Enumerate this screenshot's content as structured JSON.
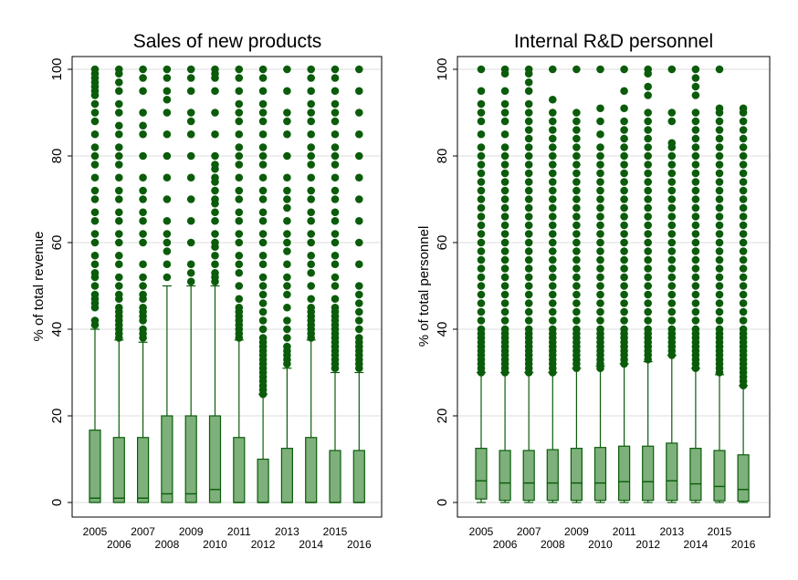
{
  "chart_data": [
    {
      "type": "box",
      "title": "Sales of new products",
      "ylabel": "% of total revenue",
      "xlabel": "",
      "ylim": [
        -3,
        103
      ],
      "yticks": [
        0,
        20,
        40,
        60,
        80,
        100
      ],
      "grid": true,
      "color": "#0a5c0a",
      "box_fill": "#7db07a",
      "categories": [
        "2005",
        "2006",
        "2007",
        "2008",
        "2009",
        "2010",
        "2011",
        "2012",
        "2013",
        "2014",
        "2015",
        "2016"
      ],
      "boxes": [
        {
          "q1": 0,
          "median": 1,
          "q3": 16.7,
          "lower_whisker": 0,
          "upper_whisker": 40
        },
        {
          "q1": 0,
          "median": 1,
          "q3": 15,
          "lower_whisker": 0,
          "upper_whisker": 37.5
        },
        {
          "q1": 0,
          "median": 1,
          "q3": 15,
          "lower_whisker": 0,
          "upper_whisker": 37
        },
        {
          "q1": 0,
          "median": 2,
          "q3": 20,
          "lower_whisker": 0,
          "upper_whisker": 50
        },
        {
          "q1": 0,
          "median": 2,
          "q3": 20,
          "lower_whisker": 0,
          "upper_whisker": 50
        },
        {
          "q1": 0,
          "median": 3,
          "q3": 20,
          "lower_whisker": 0,
          "upper_whisker": 50
        },
        {
          "q1": 0,
          "median": 0,
          "q3": 15,
          "lower_whisker": 0,
          "upper_whisker": 37.5
        },
        {
          "q1": 0,
          "median": 0,
          "q3": 10,
          "lower_whisker": 0,
          "upper_whisker": 25
        },
        {
          "q1": 0,
          "median": 0,
          "q3": 12.5,
          "lower_whisker": 0,
          "upper_whisker": 31
        },
        {
          "q1": 0,
          "median": 0,
          "q3": 15,
          "lower_whisker": 0,
          "upper_whisker": 37.5
        },
        {
          "q1": 0,
          "median": 0,
          "q3": 12,
          "lower_whisker": 0,
          "upper_whisker": 30
        },
        {
          "q1": 0,
          "median": 0,
          "q3": 12,
          "lower_whisker": 0,
          "upper_whisker": 30
        }
      ],
      "outliers": [
        [
          41,
          42,
          45,
          46,
          47,
          48,
          50,
          52,
          53,
          55,
          57,
          60,
          62,
          65,
          67,
          70,
          72,
          75,
          78,
          80,
          82,
          85,
          88,
          90,
          92,
          94,
          95,
          96,
          97,
          98,
          99,
          100
        ],
        [
          38,
          39,
          40,
          41,
          42,
          43,
          44,
          45,
          47,
          48,
          50,
          52,
          55,
          57,
          60,
          62,
          65,
          67,
          70,
          72,
          75,
          78,
          80,
          82,
          85,
          87,
          90,
          92,
          95,
          97,
          99,
          100
        ],
        [
          38,
          39,
          40,
          42,
          43,
          44,
          45,
          47,
          48,
          50,
          52,
          55,
          60,
          62,
          65,
          67,
          70,
          72,
          75,
          80,
          85,
          87,
          90,
          95,
          98,
          100
        ],
        [
          52,
          55,
          58,
          60,
          62,
          65,
          70,
          75,
          80,
          85,
          90,
          93,
          95,
          98,
          100
        ],
        [
          51,
          53,
          55,
          60,
          65,
          70,
          75,
          80,
          85,
          88,
          90,
          95,
          98,
          100
        ],
        [
          51,
          52,
          53,
          55,
          57,
          59,
          60,
          62,
          65,
          67,
          69,
          70,
          72,
          74,
          75,
          77,
          78,
          80,
          85,
          90,
          95,
          98,
          99,
          100
        ],
        [
          38,
          39,
          40,
          41,
          42,
          43,
          44,
          45,
          47,
          50,
          53,
          55,
          57,
          60,
          62,
          65,
          67,
          70,
          72,
          75,
          78,
          80,
          82,
          85,
          88,
          90,
          92,
          95,
          98,
          100
        ],
        [
          25,
          26,
          27,
          28,
          29,
          30,
          31,
          32,
          33,
          34,
          35,
          36,
          37,
          38,
          40,
          42,
          44,
          46,
          48,
          50,
          52,
          55,
          57,
          60,
          62,
          65,
          67,
          70,
          72,
          75,
          78,
          80,
          82,
          85,
          88,
          90,
          92,
          95,
          98,
          100
        ],
        [
          32,
          33,
          34,
          35,
          36,
          38,
          40,
          42,
          45,
          48,
          50,
          52,
          55,
          58,
          60,
          62,
          65,
          68,
          70,
          72,
          75,
          80,
          85,
          88,
          90,
          95,
          100
        ],
        [
          38,
          39,
          40,
          41,
          42,
          43,
          44,
          45,
          47,
          50,
          53,
          55,
          57,
          60,
          62,
          65,
          67,
          70,
          72,
          75,
          78,
          80,
          82,
          85,
          88,
          90,
          92,
          95,
          98,
          100
        ],
        [
          31,
          32,
          33,
          34,
          35,
          36,
          37,
          38,
          39,
          40,
          41,
          42,
          43,
          44,
          45,
          47,
          50,
          52,
          55,
          57,
          60,
          62,
          65,
          67,
          70,
          72,
          75,
          78,
          80,
          82,
          85,
          88,
          90,
          92,
          95,
          98,
          100
        ],
        [
          31,
          32,
          33,
          34,
          35,
          36,
          37,
          38,
          40,
          42,
          44,
          46,
          48,
          50,
          55,
          60,
          65,
          70,
          75,
          80,
          85,
          90,
          95,
          100
        ]
      ]
    },
    {
      "type": "box",
      "title": "Internal R&D personnel",
      "ylabel": "% of total personnel",
      "xlabel": "",
      "ylim": [
        -3,
        103
      ],
      "yticks": [
        0,
        20,
        40,
        60,
        80,
        100
      ],
      "grid": true,
      "color": "#0a5c0a",
      "box_fill": "#7db07a",
      "categories": [
        "2005",
        "2006",
        "2007",
        "2008",
        "2009",
        "2010",
        "2011",
        "2012",
        "2013",
        "2014",
        "2015",
        "2016"
      ],
      "boxes": [
        {
          "q1": 0.8,
          "median": 5,
          "q3": 12.5,
          "lower_whisker": 0,
          "upper_whisker": 30
        },
        {
          "q1": 0.5,
          "median": 4.5,
          "q3": 12,
          "lower_whisker": 0,
          "upper_whisker": 30
        },
        {
          "q1": 0.5,
          "median": 4.5,
          "q3": 12,
          "lower_whisker": 0,
          "upper_whisker": 30
        },
        {
          "q1": 0.5,
          "median": 4.5,
          "q3": 12.2,
          "lower_whisker": 0,
          "upper_whisker": 30
        },
        {
          "q1": 0.5,
          "median": 4.5,
          "q3": 12.5,
          "lower_whisker": 0,
          "upper_whisker": 31
        },
        {
          "q1": 0.5,
          "median": 4.5,
          "q3": 12.7,
          "lower_whisker": 0,
          "upper_whisker": 31.5
        },
        {
          "q1": 0.5,
          "median": 4.8,
          "q3": 13,
          "lower_whisker": 0,
          "upper_whisker": 32
        },
        {
          "q1": 0.5,
          "median": 4.8,
          "q3": 13,
          "lower_whisker": 0,
          "upper_whisker": 32.5
        },
        {
          "q1": 0.5,
          "median": 5,
          "q3": 13.7,
          "lower_whisker": 0,
          "upper_whisker": 34
        },
        {
          "q1": 0.5,
          "median": 4.3,
          "q3": 12.5,
          "lower_whisker": 0,
          "upper_whisker": 31
        },
        {
          "q1": 0.4,
          "median": 3.7,
          "q3": 12,
          "lower_whisker": 0,
          "upper_whisker": 29.5
        },
        {
          "q1": 0.3,
          "median": 3,
          "q3": 11,
          "lower_whisker": 0,
          "upper_whisker": 27
        }
      ],
      "outliers": [
        [
          30,
          31,
          32,
          33,
          34,
          35,
          36,
          37,
          38,
          39,
          40,
          42,
          44,
          46,
          48,
          50,
          52,
          54,
          56,
          58,
          60,
          62,
          64,
          66,
          68,
          70,
          72,
          74,
          76,
          78,
          80,
          82,
          85,
          88,
          90,
          92,
          95,
          100
        ],
        [
          30,
          31,
          32,
          33,
          34,
          35,
          36,
          37,
          38,
          39,
          40,
          42,
          44,
          46,
          48,
          50,
          52,
          54,
          56,
          58,
          60,
          62,
          64,
          66,
          68,
          70,
          72,
          74,
          76,
          78,
          80,
          82,
          85,
          88,
          90,
          92,
          95,
          99,
          100
        ],
        [
          30,
          31,
          32,
          33,
          34,
          35,
          36,
          37,
          38,
          39,
          40,
          42,
          44,
          46,
          48,
          50,
          52,
          54,
          56,
          58,
          60,
          62,
          64,
          66,
          68,
          70,
          72,
          74,
          76,
          78,
          80,
          82,
          84,
          86,
          88,
          90,
          92,
          95,
          97,
          99,
          100
        ],
        [
          30,
          31,
          32,
          33,
          34,
          35,
          36,
          37,
          38,
          39,
          40,
          42,
          44,
          46,
          48,
          50,
          52,
          54,
          56,
          58,
          60,
          62,
          64,
          66,
          68,
          70,
          72,
          74,
          76,
          78,
          80,
          82,
          84,
          86,
          88,
          90,
          93,
          100
        ],
        [
          31,
          32,
          33,
          34,
          35,
          36,
          37,
          38,
          39,
          40,
          42,
          44,
          46,
          48,
          50,
          52,
          54,
          56,
          58,
          60,
          62,
          64,
          66,
          68,
          70,
          72,
          74,
          76,
          78,
          80,
          82,
          84,
          86,
          88,
          90,
          100
        ],
        [
          31,
          32,
          33,
          34,
          35,
          36,
          37,
          38,
          39,
          40,
          42,
          44,
          46,
          48,
          50,
          52,
          54,
          56,
          58,
          60,
          62,
          64,
          66,
          68,
          70,
          72,
          74,
          76,
          78,
          80,
          82,
          85,
          88,
          91,
          100
        ],
        [
          32,
          33,
          34,
          35,
          36,
          37,
          38,
          39,
          40,
          42,
          44,
          46,
          48,
          50,
          52,
          54,
          56,
          58,
          60,
          62,
          64,
          66,
          68,
          70,
          72,
          74,
          76,
          78,
          80,
          82,
          84,
          86,
          88,
          91,
          95,
          100
        ],
        [
          33,
          34,
          35,
          36,
          37,
          38,
          39,
          40,
          42,
          44,
          46,
          48,
          50,
          52,
          54,
          56,
          58,
          60,
          62,
          64,
          66,
          68,
          70,
          72,
          74,
          76,
          78,
          80,
          82,
          84,
          86,
          88,
          90,
          94,
          96,
          99,
          100
        ],
        [
          34,
          35,
          36,
          37,
          38,
          39,
          40,
          42,
          44,
          46,
          48,
          50,
          52,
          54,
          56,
          58,
          60,
          62,
          64,
          66,
          68,
          70,
          72,
          74,
          76,
          78,
          80,
          82,
          83,
          88,
          90,
          100
        ],
        [
          31,
          32,
          33,
          34,
          35,
          36,
          37,
          38,
          39,
          40,
          42,
          44,
          46,
          48,
          50,
          52,
          54,
          56,
          58,
          60,
          62,
          64,
          66,
          68,
          70,
          72,
          74,
          76,
          78,
          80,
          82,
          84,
          86,
          88,
          90,
          94,
          96,
          98,
          100
        ],
        [
          30,
          31,
          32,
          33,
          34,
          35,
          36,
          37,
          38,
          39,
          40,
          42,
          44,
          46,
          48,
          50,
          52,
          54,
          56,
          58,
          60,
          62,
          64,
          66,
          68,
          70,
          72,
          74,
          76,
          78,
          80,
          82,
          84,
          86,
          88,
          90,
          91,
          100
        ],
        [
          27,
          28,
          29,
          30,
          31,
          32,
          33,
          34,
          35,
          36,
          37,
          38,
          39,
          40,
          42,
          44,
          46,
          48,
          50,
          52,
          54,
          56,
          58,
          60,
          62,
          64,
          66,
          68,
          70,
          72,
          74,
          76,
          78,
          80,
          82,
          84,
          86,
          88,
          90,
          91
        ]
      ]
    }
  ]
}
